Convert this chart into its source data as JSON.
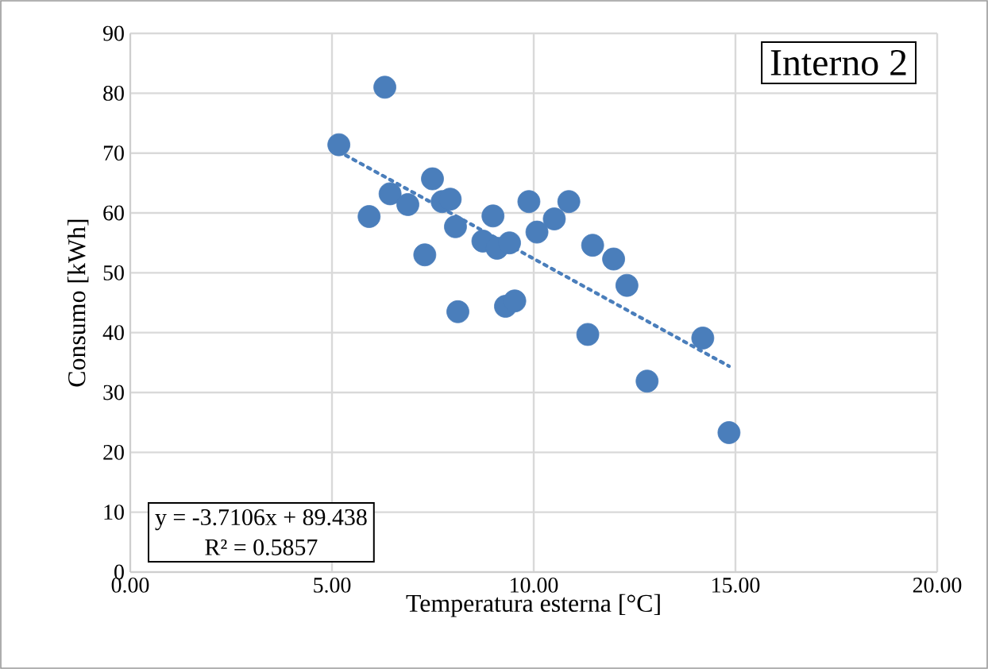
{
  "chart_data": {
    "type": "scatter",
    "title": "Interno 2",
    "xlabel": "Temperatura esterna [°C]",
    "ylabel": "Consumo [kWh]",
    "series": [
      {
        "color": "#4a7ebb",
        "marker": "circle",
        "x": [
          5.17,
          6.31,
          5.92,
          6.44,
          6.88,
          7.49,
          7.73,
          7.93,
          8.06,
          7.3,
          8.12,
          8.99,
          8.74,
          9.09,
          9.4,
          9.88,
          10.08,
          9.3,
          9.53,
          10.51,
          10.87,
          11.46,
          11.98,
          12.31,
          11.34,
          12.81,
          14.19,
          14.84
        ],
        "values": [
          71.4,
          81.0,
          59.4,
          63.2,
          61.4,
          65.7,
          61.9,
          62.3,
          57.7,
          53.0,
          43.5,
          59.5,
          55.3,
          54.1,
          55.0,
          61.9,
          56.8,
          44.4,
          45.3,
          59.0,
          61.9,
          54.6,
          52.3,
          47.9,
          39.7,
          31.9,
          39.1,
          23.3
        ]
      },
      {
        "type": "line",
        "color": "#4a7ebb",
        "line_style": "dotted",
        "x": [
          5.16,
          14.84
        ],
        "values": [
          70.3,
          34.4
        ]
      }
    ],
    "xlim": [
      0,
      20
    ],
    "ylim": [
      0,
      90
    ],
    "xticks": [
      {
        "value": 0,
        "label": "0.00"
      },
      {
        "value": 5,
        "label": "5.00"
      },
      {
        "value": 10,
        "label": "10.00"
      },
      {
        "value": 15,
        "label": "15.00"
      },
      {
        "value": 20,
        "label": "20.00"
      }
    ],
    "yticks": [
      0,
      10,
      20,
      30,
      40,
      50,
      60,
      70,
      80,
      90
    ],
    "grid": true,
    "annotations": [
      "y = -3.7106x + 89.438",
      "R² = 0.5857"
    ]
  }
}
